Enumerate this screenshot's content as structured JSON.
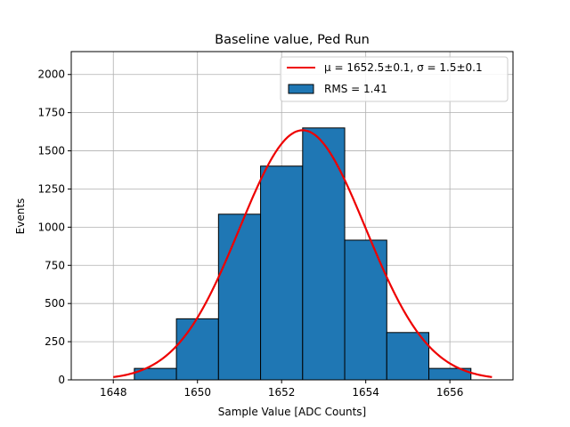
{
  "chart_data": {
    "type": "bar",
    "title": "Baseline value, Ped Run",
    "xlabel": "Sample Value [ADC Counts]",
    "ylabel": "Events",
    "xlim": [
      1647.0,
      1657.5
    ],
    "ylim": [
      0,
      2150
    ],
    "xticks": [
      1648,
      1650,
      1652,
      1654,
      1656
    ],
    "yticks": [
      0,
      250,
      500,
      750,
      1000,
      1250,
      1500,
      1750,
      2000
    ],
    "grid": true,
    "legend_position": "top-right",
    "bins": [
      {
        "x0": 1647.5,
        "x1": 1648.5,
        "count": 0
      },
      {
        "x0": 1648.5,
        "x1": 1649.5,
        "count": 75
      },
      {
        "x0": 1649.5,
        "x1": 1650.5,
        "count": 400
      },
      {
        "x0": 1650.5,
        "x1": 1651.5,
        "count": 1085
      },
      {
        "x0": 1651.5,
        "x1": 1652.5,
        "count": 1400
      },
      {
        "x0": 1652.5,
        "x1": 1653.5,
        "count": 1650
      },
      {
        "x0": 1653.5,
        "x1": 1654.5,
        "count": 915
      },
      {
        "x0": 1654.5,
        "x1": 1655.5,
        "count": 310
      },
      {
        "x0": 1655.5,
        "x1": 1656.5,
        "count": 75
      }
    ],
    "series": [
      {
        "name": "μ = 1652.5±0.1, σ = 1.5±0.1",
        "kind": "gaussian-fit",
        "color": "#ee0000",
        "mu": 1652.5,
        "sigma": 1.5,
        "amplitude": 1635,
        "x_range": [
          1648.0,
          1657.0
        ]
      },
      {
        "name": "RMS = 1.41",
        "kind": "histogram",
        "color": "#1f77b4",
        "edgecolor": "#000000"
      }
    ]
  }
}
